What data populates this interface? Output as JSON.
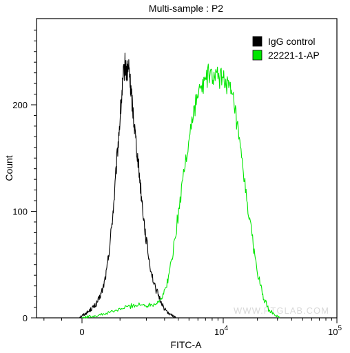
{
  "chart_data": {
    "type": "line",
    "title": "Multi-sample : P2",
    "xlabel": "FITC-A",
    "ylabel": "Count",
    "x_scale": "biexponential",
    "xlim": [
      -1500,
      100000
    ],
    "ylim": [
      0,
      275
    ],
    "x_ticks": [
      {
        "value": 0,
        "label": "0"
      },
      {
        "value": 10000,
        "label": "10",
        "sup": "4"
      },
      {
        "value": 100000,
        "label": "10",
        "sup": "5"
      }
    ],
    "y_ticks": [
      {
        "value": 0,
        "label": "0"
      },
      {
        "value": 100,
        "label": "100"
      },
      {
        "value": 200,
        "label": "200"
      }
    ],
    "grid": false,
    "legend_position": "top-right",
    "watermark": "WWW.PTGLAB.COM",
    "series": [
      {
        "name": "IgG control",
        "color": "#000000",
        "points": [
          [
            -80,
            0
          ],
          [
            0,
            2
          ],
          [
            80,
            4
          ],
          [
            160,
            6
          ],
          [
            240,
            9
          ],
          [
            330,
            12
          ],
          [
            420,
            18
          ],
          [
            520,
            28
          ],
          [
            620,
            45
          ],
          [
            720,
            75
          ],
          [
            820,
            110
          ],
          [
            920,
            155
          ],
          [
            1020,
            195
          ],
          [
            1100,
            225
          ],
          [
            1160,
            238
          ],
          [
            1220,
            230
          ],
          [
            1290,
            235
          ],
          [
            1350,
            218
          ],
          [
            1420,
            200
          ],
          [
            1520,
            175
          ],
          [
            1650,
            145
          ],
          [
            1800,
            110
          ],
          [
            1950,
            80
          ],
          [
            2150,
            52
          ],
          [
            2400,
            30
          ],
          [
            2700,
            18
          ],
          [
            3000,
            8
          ],
          [
            3400,
            3
          ],
          [
            3800,
            0
          ]
        ]
      },
      {
        "name": "22221-1-AP",
        "color": "#00e600",
        "points": [
          [
            0,
            0
          ],
          [
            150,
            1
          ],
          [
            350,
            2
          ],
          [
            600,
            4
          ],
          [
            900,
            7
          ],
          [
            1200,
            10
          ],
          [
            1500,
            12
          ],
          [
            1800,
            12
          ],
          [
            2100,
            12
          ],
          [
            2500,
            14
          ],
          [
            2900,
            20
          ],
          [
            3300,
            40
          ],
          [
            3800,
            80
          ],
          [
            4400,
            130
          ],
          [
            5100,
            175
          ],
          [
            5800,
            205
          ],
          [
            6600,
            218
          ],
          [
            7400,
            228
          ],
          [
            8200,
            226
          ],
          [
            9200,
            225
          ],
          [
            10200,
            226
          ],
          [
            11300,
            215
          ],
          [
            12500,
            200
          ],
          [
            14000,
            160
          ],
          [
            15700,
            120
          ],
          [
            17700,
            80
          ],
          [
            19800,
            45
          ],
          [
            22300,
            20
          ],
          [
            25000,
            8
          ],
          [
            28000,
            3
          ],
          [
            31500,
            0
          ]
        ]
      }
    ]
  }
}
